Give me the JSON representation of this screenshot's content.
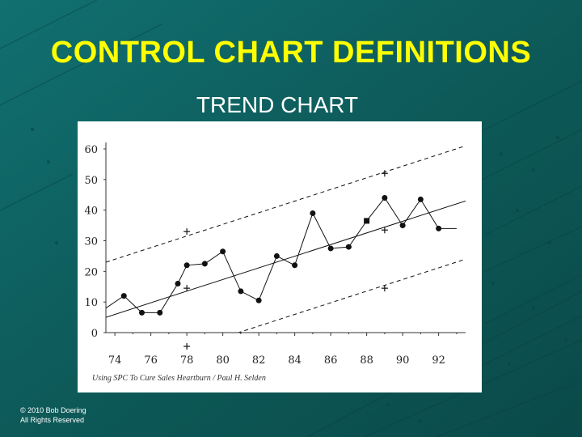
{
  "slide": {
    "title": "CONTROL CHART DEFINITIONS",
    "subtitle": "TREND CHART",
    "copyright_line1": "© 2010 Bob Doering",
    "copyright_line2": "All Rights Reserved"
  },
  "colors": {
    "background": "#0f5f5e",
    "title": "#ffff00",
    "subtitle": "#ffffff"
  },
  "chart_data": {
    "type": "line",
    "title": "",
    "xlabel": "",
    "ylabel": "",
    "source_note": "Using SPC To Cure Sales Heartburn / Paul H. Selden",
    "x_tick_labels": [
      "74",
      "76",
      "78",
      "80",
      "82",
      "84",
      "86",
      "88",
      "90",
      "92"
    ],
    "y_tick_labels": [
      "0",
      "10",
      "20",
      "30",
      "40",
      "50",
      "60"
    ],
    "xlim": [
      73.5,
      93.5
    ],
    "ylim": [
      0,
      60
    ],
    "grid": false,
    "legend": "none",
    "series": [
      {
        "style": "solid-with-dots",
        "x": [
          73.5,
          74.5,
          75.5,
          76.5,
          77.5,
          78.0,
          79.0,
          80.0,
          81.0,
          82.0,
          83.0,
          84.0,
          85.0,
          86.0,
          87.0,
          88.0,
          89.0,
          90.0,
          91.0,
          92.0,
          93.0
        ],
        "y": [
          8,
          12,
          6.5,
          6.5,
          16,
          22,
          22.5,
          26.5,
          13.5,
          10.5,
          25,
          22,
          39,
          27.5,
          28,
          36.5,
          44,
          35,
          43.5,
          34,
          34
        ]
      },
      {
        "name": "trend line",
        "style": "solid",
        "x": [
          73.5,
          93.5
        ],
        "y": [
          5,
          43
        ]
      },
      {
        "name": "upper limit",
        "style": "dashed",
        "x": [
          73.5,
          93.5
        ],
        "y": [
          23,
          61
        ]
      },
      {
        "name": "lower limit",
        "style": "dashed",
        "x": [
          73.5,
          93.5
        ],
        "y": [
          -14,
          24
        ]
      }
    ],
    "plus_marks": [
      {
        "x": 78,
        "y": 33
      },
      {
        "x": 78,
        "y": 14.5
      },
      {
        "x": 78,
        "y": -4.5
      },
      {
        "x": 89,
        "y": 52
      },
      {
        "x": 89,
        "y": 33.5
      },
      {
        "x": 89,
        "y": 14.5
      }
    ]
  }
}
